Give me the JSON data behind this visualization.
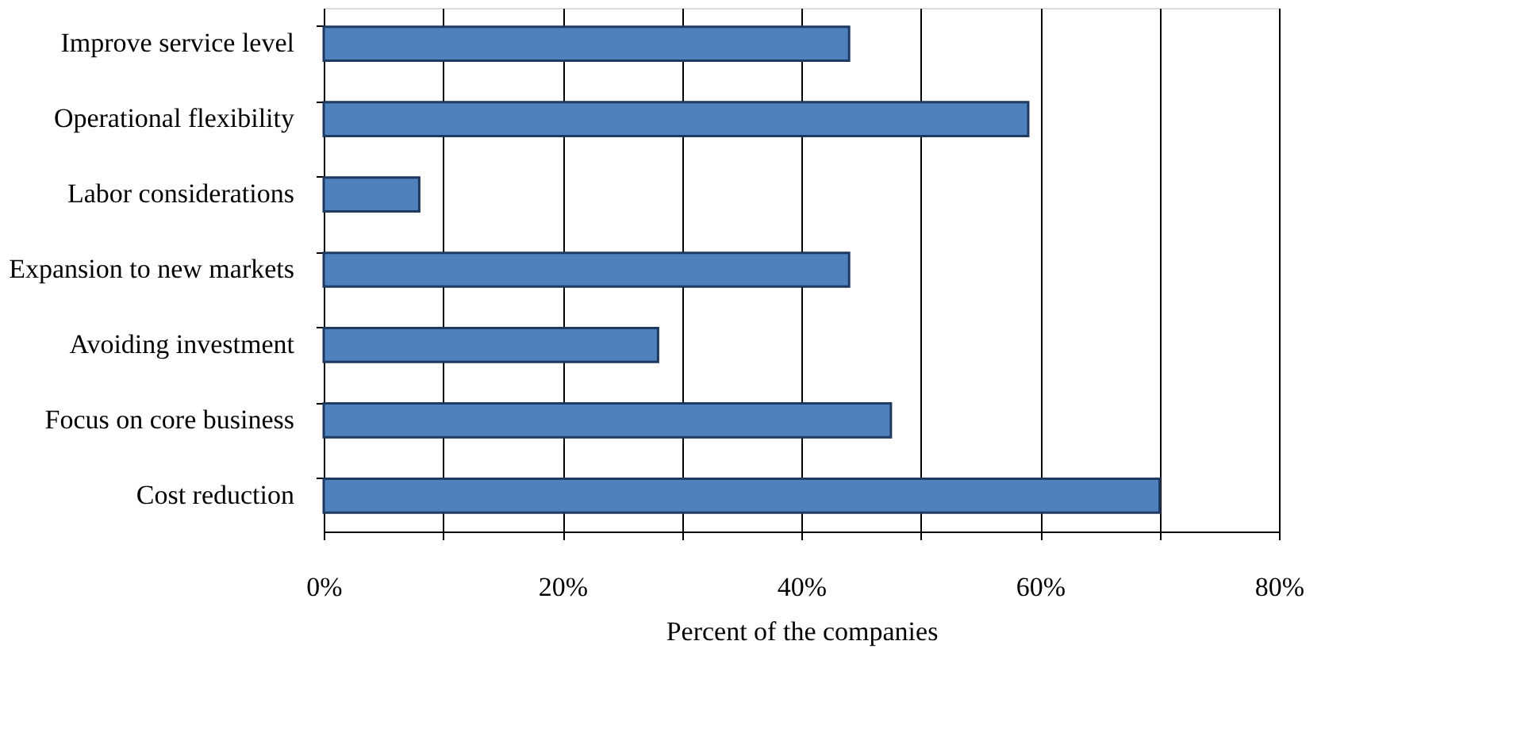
{
  "chart_data": {
    "type": "bar",
    "orientation": "horizontal",
    "xlabel": "Percent of the companies",
    "categories": [
      "Improve service level",
      "Operational flexibility",
      "Labor considerations",
      "Expansion to new markets",
      "Avoiding investment",
      "Focus on core business",
      "Cost reduction"
    ],
    "values": [
      44,
      59,
      8,
      44,
      28,
      47.5,
      70
    ],
    "color": "#4f81bd",
    "xlim": [
      0,
      80
    ],
    "xticks": [
      {
        "value": 0,
        "label": "0%"
      },
      {
        "value": 10,
        "label": null
      },
      {
        "value": 20,
        "label": "20%"
      },
      {
        "value": 30,
        "label": null
      },
      {
        "value": 40,
        "label": "40%"
      },
      {
        "value": 50,
        "label": null
      },
      {
        "value": 60,
        "label": "60%"
      },
      {
        "value": 70,
        "label": null
      },
      {
        "value": 80,
        "label": "80%"
      }
    ],
    "grid": "x"
  }
}
